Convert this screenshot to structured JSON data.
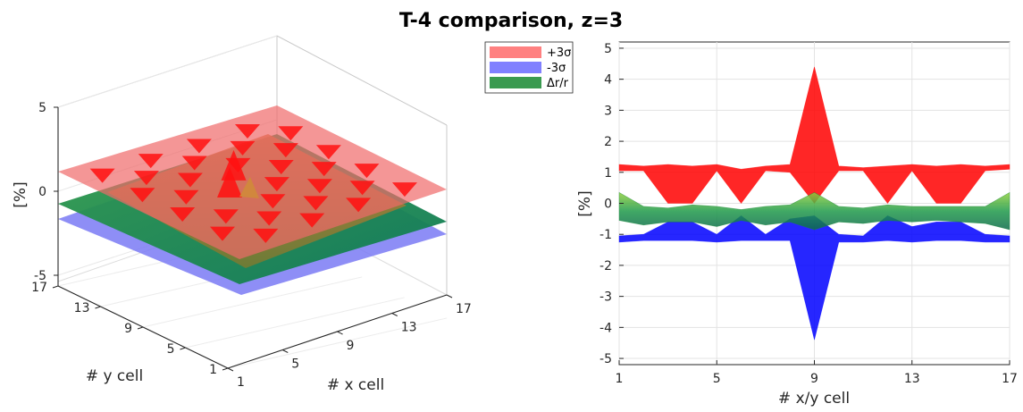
{
  "figure": {
    "title": "T-4 comparison, z=3"
  },
  "legend": {
    "placement": "between-panels-top",
    "entries": [
      {
        "label": "+3σ",
        "color": "#ff8080"
      },
      {
        "label": "-3σ",
        "color": "#8080ff"
      },
      {
        "label": "Δr/r",
        "color": "#3a9a50"
      }
    ]
  },
  "chart_data": [
    {
      "type": "surface",
      "panel": "left",
      "xlabel": "# x cell",
      "ylabel": "# y cell",
      "zlabel": "[%]",
      "xlim": [
        1,
        17
      ],
      "ylim": [
        1,
        17
      ],
      "zlim": [
        -5,
        5
      ],
      "x_ticks": [
        "1",
        "5",
        "9",
        "13",
        "17"
      ],
      "y_ticks": [
        "1",
        "5",
        "9",
        "13",
        "17"
      ],
      "z_ticks": [
        "-5",
        "0",
        "5"
      ],
      "grid": true,
      "series": [
        {
          "name": "+3σ",
          "color": "#ff0000",
          "approx_level": 1.2
        },
        {
          "name": "-3σ",
          "color": "#0000ff",
          "approx_level": -1.2
        },
        {
          "name": "Δr/r",
          "color": "#1a8a3a",
          "approx_level": -0.3
        }
      ]
    },
    {
      "type": "area",
      "panel": "right",
      "xlabel": "# x/y cell",
      "ylabel": "[%]",
      "xlim": [
        1,
        17
      ],
      "ylim": [
        -5.2,
        5.2
      ],
      "x_ticks": [
        1,
        5,
        9,
        13,
        17
      ],
      "y_ticks": [
        -5,
        -4,
        -3,
        -2,
        -1,
        0,
        1,
        2,
        3,
        4,
        5
      ],
      "grid": true,
      "x": [
        1,
        2,
        3,
        4,
        5,
        6,
        7,
        8,
        9,
        10,
        11,
        12,
        13,
        14,
        15,
        16,
        17
      ],
      "series": [
        {
          "name": "+3σ",
          "color": "#ff0000",
          "upper": [
            1.25,
            1.2,
            1.25,
            1.2,
            1.25,
            1.1,
            1.2,
            1.25,
            4.4,
            1.2,
            1.15,
            1.2,
            1.25,
            1.2,
            1.25,
            1.2,
            1.25
          ],
          "lower": [
            1.05,
            1.05,
            0.0,
            0.0,
            1.05,
            0.0,
            1.05,
            1.0,
            0.0,
            1.05,
            1.05,
            0.0,
            1.05,
            0.0,
            0.0,
            1.05,
            1.1
          ]
        },
        {
          "name": "-3σ",
          "color": "#0000ff",
          "upper": [
            -1.05,
            -1.0,
            -0.6,
            -0.6,
            -1.0,
            -0.4,
            -1.0,
            -0.5,
            -0.4,
            -1.0,
            -1.05,
            -0.4,
            -0.75,
            -0.6,
            -0.6,
            -1.0,
            -1.05
          ],
          "lower": [
            -1.25,
            -1.2,
            -1.2,
            -1.2,
            -1.25,
            -1.2,
            -1.2,
            -1.2,
            -4.4,
            -1.25,
            -1.25,
            -1.2,
            -1.25,
            -1.2,
            -1.2,
            -1.25,
            -1.25
          ]
        },
        {
          "name": "Δr/r",
          "color": "#1a8a3a",
          "upper": [
            0.35,
            -0.1,
            -0.15,
            -0.05,
            -0.1,
            -0.2,
            -0.1,
            -0.05,
            0.35,
            -0.1,
            -0.15,
            -0.05,
            -0.1,
            -0.1,
            -0.1,
            -0.1,
            0.35
          ],
          "lower": [
            -0.55,
            -0.7,
            -0.6,
            -0.6,
            -0.75,
            -0.55,
            -0.7,
            -0.6,
            -0.85,
            -0.6,
            -0.65,
            -0.55,
            -0.6,
            -0.55,
            -0.6,
            -0.65,
            -0.85
          ]
        }
      ]
    }
  ]
}
